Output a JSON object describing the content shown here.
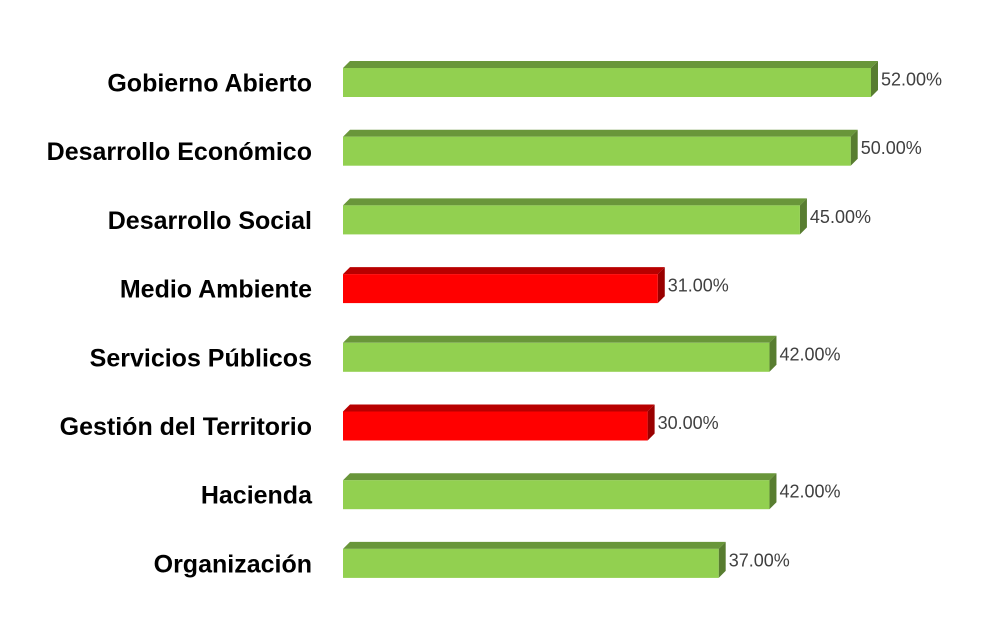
{
  "chart_data": {
    "type": "bar",
    "orientation": "horizontal",
    "categories": [
      "Gobierno Abierto",
      "Desarrollo Económico",
      "Desarrollo Social",
      "Medio Ambiente",
      "Servicios Públicos",
      "Gestión del Territorio",
      "Hacienda",
      "Organización"
    ],
    "values": [
      52,
      50,
      45,
      31,
      42,
      30,
      42,
      37
    ],
    "value_labels": [
      "52.00%",
      "50.00%",
      "45.00%",
      "31.00%",
      "42.00%",
      "30.00%",
      "42.00%",
      "37.00%"
    ],
    "bar_colors": [
      "#92d050",
      "#92d050",
      "#92d050",
      "#ff0000",
      "#92d050",
      "#ff0000",
      "#92d050",
      "#92d050"
    ],
    "xlim": [
      0,
      52
    ],
    "title": "",
    "xlabel": "",
    "ylabel": "",
    "grid": false,
    "legend": "none"
  }
}
